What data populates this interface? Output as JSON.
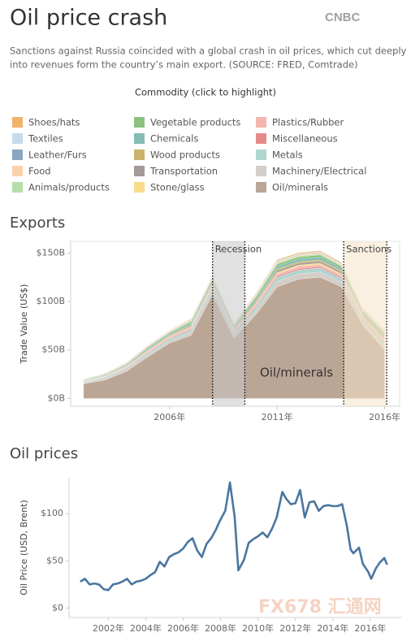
{
  "header": {
    "title": "Oil price crash",
    "logo": "CNBC",
    "subtitle": [
      "Sanctions against Russia coincided with a global crash in oil prices, which cut deeply",
      "into revenues form the country’s main export. (SOURCE: FRED, Comtrade)"
    ]
  },
  "chart_data": [
    {
      "type": "area",
      "stacked": true,
      "title": "Exports",
      "legend_title": "Commodity (click to highlight)",
      "ylabel": "Trade Value (US$)",
      "x": [
        2002,
        2003,
        2004,
        2005,
        2006,
        2007,
        2008,
        2009,
        2010,
        2011,
        2012,
        2013,
        2014,
        2015,
        2016
      ],
      "xlim": [
        2001.4,
        2016.7
      ],
      "xticks": [
        {
          "value": 2006,
          "label": "2006年"
        },
        {
          "value": 2011,
          "label": "2011年"
        },
        {
          "value": 2016,
          "label": "2016年"
        }
      ],
      "ylim": [
        -8,
        162
      ],
      "yticks": [
        {
          "value": 0,
          "label": "$0B"
        },
        {
          "value": 50,
          "label": "$50B"
        },
        {
          "value": 100,
          "label": "$100B"
        },
        {
          "value": 150,
          "label": "$150B"
        }
      ],
      "series": [
        {
          "name": "Shoes/hats",
          "color": "#f1b26a",
          "values": [
            0.2,
            0.3,
            0.4,
            0.5,
            0.5,
            0.7,
            0.8,
            0.6,
            0.9,
            1.1,
            1.1,
            1.1,
            1,
            0.7,
            0.8
          ]
        },
        {
          "name": "Textiles",
          "color": "#c5dbea",
          "values": [
            0.1,
            0.1,
            0.2,
            0.2,
            0.3,
            0.3,
            0.4,
            0.3,
            0.4,
            0.6,
            0.5,
            0.5,
            0.5,
            0.4,
            0.4
          ]
        },
        {
          "name": "Leather/Furs",
          "color": "#8aa6c1",
          "values": [
            0.1,
            0.1,
            0.2,
            0.2,
            0.3,
            0.3,
            0.4,
            0.3,
            0.4,
            0.6,
            0.5,
            0.5,
            0.5,
            0.4,
            0.4
          ]
        },
        {
          "name": "Food",
          "color": "#f9d2ac",
          "values": [
            0.2,
            0.3,
            0.4,
            0.5,
            0.5,
            0.7,
            0.8,
            0.6,
            0.9,
            1.1,
            1.1,
            1.1,
            1,
            0.7,
            0.8
          ]
        },
        {
          "name": "Animals/products",
          "color": "#b6deaa",
          "values": [
            0.2,
            0.3,
            0.4,
            0.5,
            0.5,
            0.7,
            0.8,
            0.6,
            0.9,
            1.1,
            1.1,
            1.1,
            1,
            0.7,
            0.8
          ]
        },
        {
          "name": "Vegetable products",
          "color": "#8cc17e",
          "values": [
            0.4,
            0.6,
            0.7,
            1,
            1,
            1.4,
            1.6,
            1.3,
            1.8,
            2.2,
            2.2,
            2.2,
            2,
            1.4,
            1.6
          ]
        },
        {
          "name": "Chemicals",
          "color": "#83bcb5",
          "values": [
            0.5,
            0.7,
            0.9,
            1.2,
            1.3,
            1.7,
            2,
            1.6,
            2.2,
            2.8,
            2.7,
            2.7,
            2.5,
            1.8,
            2
          ]
        },
        {
          "name": "Wood products",
          "color": "#c9b36e",
          "values": [
            0.3,
            0.4,
            0.5,
            0.7,
            0.8,
            1,
            1.2,
            1,
            1.3,
            1.7,
            1.6,
            1.6,
            1.5,
            1.1,
            1.2
          ]
        },
        {
          "name": "Transportation",
          "color": "#a39a99",
          "values": [
            0.4,
            0.5,
            0.6,
            0.8,
            0.9,
            1.2,
            1.4,
            1.1,
            1.5,
            2,
            1.9,
            1.9,
            1.8,
            1.3,
            1.4
          ]
        },
        {
          "name": "Stone/glass",
          "color": "#f6dc8c",
          "values": [
            0.3,
            0.4,
            0.5,
            0.6,
            0.7,
            0.9,
            1,
            0.8,
            1.1,
            1.4,
            1.4,
            1.4,
            1.3,
            0.9,
            1
          ]
        },
        {
          "name": "Plastics/Rubber",
          "color": "#f5b5b0",
          "values": [
            0.4,
            0.6,
            0.7,
            1,
            1,
            1.4,
            1.6,
            1.3,
            1.8,
            2.2,
            2.2,
            2.2,
            2,
            1.4,
            1.6
          ]
        },
        {
          "name": "Miscellaneous",
          "color": "#e68a8a",
          "values": [
            0.3,
            0.4,
            0.5,
            0.6,
            0.7,
            0.9,
            1,
            0.8,
            1.1,
            1.4,
            1.4,
            1.4,
            1.3,
            0.9,
            1
          ]
        },
        {
          "name": "Metals",
          "color": "#aed5cf",
          "values": [
            0.8,
            1.1,
            1.4,
            1.8,
            2,
            2.6,
            3,
            2.4,
            3.3,
            4.2,
            4.1,
            4.1,
            3.8,
            2.7,
            3
          ]
        },
        {
          "name": "Machinery/Electrical",
          "color": "#d4cdc8",
          "values": [
            1,
            1.4,
            1.8,
            2.4,
            2.6,
            3.4,
            4,
            3.2,
            4.4,
            5.6,
            5.4,
            5.4,
            5,
            3.6,
            4
          ]
        },
        {
          "name": "Oil/minerals",
          "color": "#bba595",
          "values": [
            15,
            19,
            28,
            43,
            57,
            65,
            107,
            62,
            86,
            115,
            123,
            125,
            115,
            75,
            50
          ]
        }
      ],
      "annotations": [
        {
          "label": "Recession",
          "x": [
            2008,
            2009.5
          ],
          "color": "#c8c8c8"
        },
        {
          "label": "Sanctions",
          "x": [
            2014.1,
            2016.1
          ],
          "color": "#f6e4c9"
        }
      ]
    },
    {
      "type": "line",
      "title": "Oil prices",
      "ylabel": "Oil Price (USD, Brent)",
      "x": [
        2000.5,
        2000.75,
        2001,
        2001.25,
        2001.5,
        2001.75,
        2002,
        2002.25,
        2002.5,
        2002.75,
        2003,
        2003.25,
        2003.5,
        2003.75,
        2004,
        2004.25,
        2004.5,
        2004.75,
        2005,
        2005.25,
        2005.5,
        2005.75,
        2006,
        2006.25,
        2006.5,
        2006.75,
        2007,
        2007.25,
        2007.5,
        2007.75,
        2007.95,
        2008.25,
        2008.5,
        2008.75,
        2008.95,
        2009.25,
        2009.5,
        2009.75,
        2010,
        2010.25,
        2010.5,
        2010.75,
        2011,
        2011.3,
        2011.5,
        2011.75,
        2012,
        2012.25,
        2012.5,
        2012.75,
        2013,
        2013.25,
        2013.5,
        2013.75,
        2014,
        2014.25,
        2014.5,
        2014.75,
        2014.95,
        2015.1,
        2015.4,
        2015.6,
        2015.9,
        2016.05,
        2016.3,
        2016.5,
        2016.75,
        2016.9
      ],
      "values": [
        28,
        31,
        25,
        26,
        25,
        20,
        19,
        25,
        26,
        28,
        31,
        25,
        28,
        29,
        31,
        35,
        38,
        49,
        44,
        54,
        57,
        59,
        63,
        70,
        74,
        61,
        54,
        68,
        74,
        83,
        92,
        103,
        133,
        97,
        40,
        51,
        69,
        73,
        76,
        80,
        75,
        84,
        96,
        123,
        116,
        110,
        111,
        125,
        96,
        112,
        113,
        103,
        108,
        109,
        108,
        108,
        110,
        87,
        62,
        58,
        64,
        47,
        38,
        31,
        42,
        48,
        53,
        46
      ],
      "color": "#4a76a0",
      "xlim": [
        1999.9,
        2017.7
      ],
      "xticks": [
        {
          "value": 2002,
          "label": "2002年"
        },
        {
          "value": 2004,
          "label": "2004年"
        },
        {
          "value": 2006,
          "label": "2006年"
        },
        {
          "value": 2008,
          "label": "2008年"
        },
        {
          "value": 2010,
          "label": "2010年"
        },
        {
          "value": 2012,
          "label": "2012年"
        },
        {
          "value": 2014,
          "label": "2014年"
        },
        {
          "value": 2016,
          "label": "2016年"
        }
      ],
      "ylim": [
        -10,
        138
      ],
      "yticks": [
        {
          "value": 0,
          "label": "$0"
        },
        {
          "value": 50,
          "label": "$50"
        },
        {
          "value": 100,
          "label": "$100"
        }
      ]
    }
  ],
  "watermark": "FX678 汇通网"
}
